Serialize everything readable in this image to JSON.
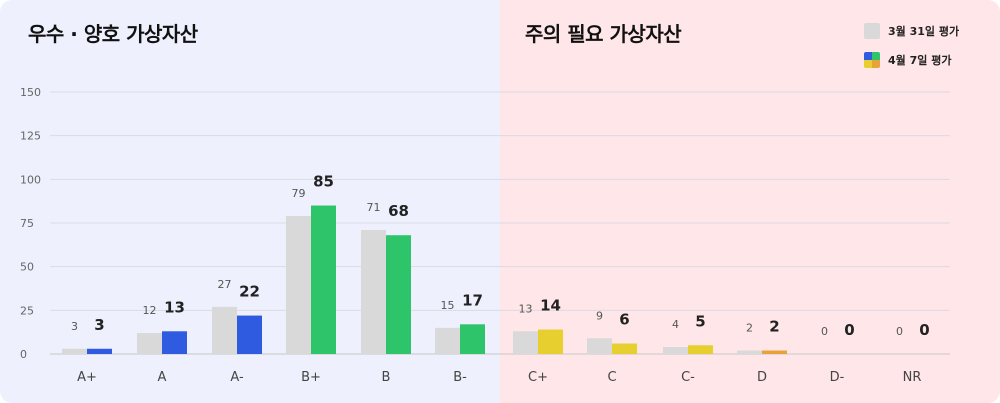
{
  "panels": {
    "left_title": "우수 · 양호 가상자산",
    "right_title": "주의 필요 가상자산"
  },
  "colors": {
    "left_bg": "#eef0fd",
    "right_bg": "#ffe6e8",
    "previous": "#d9d9d9",
    "grade_a": "#2e5be0",
    "grade_b": "#2ec56a",
    "grade_c": "#e6cf2e",
    "grade_d": "#e8a23a"
  },
  "legend": {
    "previous_label": "3월 31일 평가",
    "current_label": "4월 7일 평가"
  },
  "chart_data": {
    "type": "bar",
    "categories": [
      "A+",
      "A",
      "A-",
      "B+",
      "B",
      "B-",
      "C+",
      "C",
      "C-",
      "D",
      "D-",
      "NR"
    ],
    "series": [
      {
        "name": "3월 31일 평가",
        "values": [
          3,
          12,
          27,
          79,
          71,
          15,
          13,
          9,
          4,
          2,
          0,
          0
        ]
      },
      {
        "name": "4월 7일 평가",
        "values": [
          3,
          13,
          22,
          85,
          68,
          17,
          14,
          6,
          5,
          2,
          0,
          0
        ]
      }
    ],
    "current_bar_colors": [
      "#2e5be0",
      "#2e5be0",
      "#2e5be0",
      "#2ec56a",
      "#2ec56a",
      "#2ec56a",
      "#e6cf2e",
      "#e6cf2e",
      "#e6cf2e",
      "#e8a23a",
      "#e8a23a",
      "#e8a23a"
    ],
    "ylim": [
      0,
      150
    ],
    "yticks": [
      0,
      25,
      50,
      75,
      100,
      125,
      150
    ],
    "grid": true,
    "legend_position": "top-right"
  }
}
